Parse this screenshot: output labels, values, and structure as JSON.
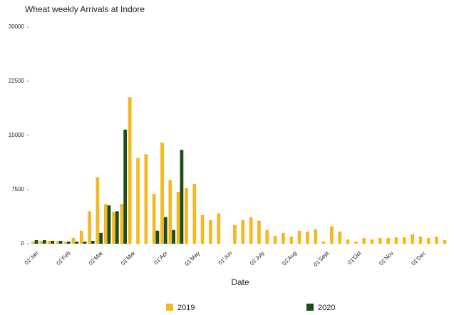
{
  "chart_data": {
    "type": "bar",
    "title": "Wheat weekly Arrivals at Indore",
    "x_label": "Date",
    "categories": [
      "01'Jan",
      null,
      null,
      null,
      "01'Feb",
      null,
      null,
      null,
      "01'Mar",
      null,
      null,
      null,
      "01'Mar",
      null,
      null,
      null,
      "01'Apr",
      null,
      null,
      null,
      "01'May",
      null,
      null,
      null,
      "01'Jun",
      null,
      null,
      null,
      "01'July",
      null,
      null,
      null,
      "01'Aug",
      null,
      null,
      null,
      "01'Sept",
      null,
      null,
      null,
      "01'Oct",
      null,
      null,
      null,
      "01'Nov",
      null,
      null,
      null,
      "01'Dec",
      null,
      null,
      null
    ],
    "series": [
      {
        "name": "2019",
        "color": "#f5b820",
        "values": [
          300,
          400,
          400,
          300,
          300,
          800,
          1800,
          4500,
          9200,
          5500,
          4400,
          5500,
          20300,
          11900,
          12400,
          6900,
          14000,
          8800,
          7200,
          7700,
          8300,
          4000,
          3300,
          4200,
          0,
          2600,
          3300,
          3700,
          3200,
          1900,
          1100,
          1500,
          1000,
          1800,
          1700,
          2000,
          300,
          2400,
          1700,
          600,
          300,
          800,
          600,
          800,
          800,
          900,
          900,
          1300,
          1000,
          800,
          1000,
          500
        ]
      },
      {
        "name": "2020",
        "color": "#1e4d1a",
        "values": [
          500,
          500,
          400,
          400,
          300,
          300,
          300,
          400,
          1500,
          5300,
          4500,
          15800,
          0,
          0,
          0,
          1800,
          3700,
          1900,
          13000,
          null,
          null,
          null,
          null,
          null,
          null,
          null,
          null,
          null,
          null,
          null,
          null,
          null,
          null,
          null,
          null,
          null,
          null,
          null,
          null,
          null,
          null,
          null,
          null,
          null,
          null,
          null,
          null,
          null,
          null,
          null,
          null,
          null
        ]
      }
    ],
    "ylim": [
      0,
      30000
    ],
    "yticks": [
      0,
      7500,
      15000,
      22500,
      30000
    ]
  }
}
